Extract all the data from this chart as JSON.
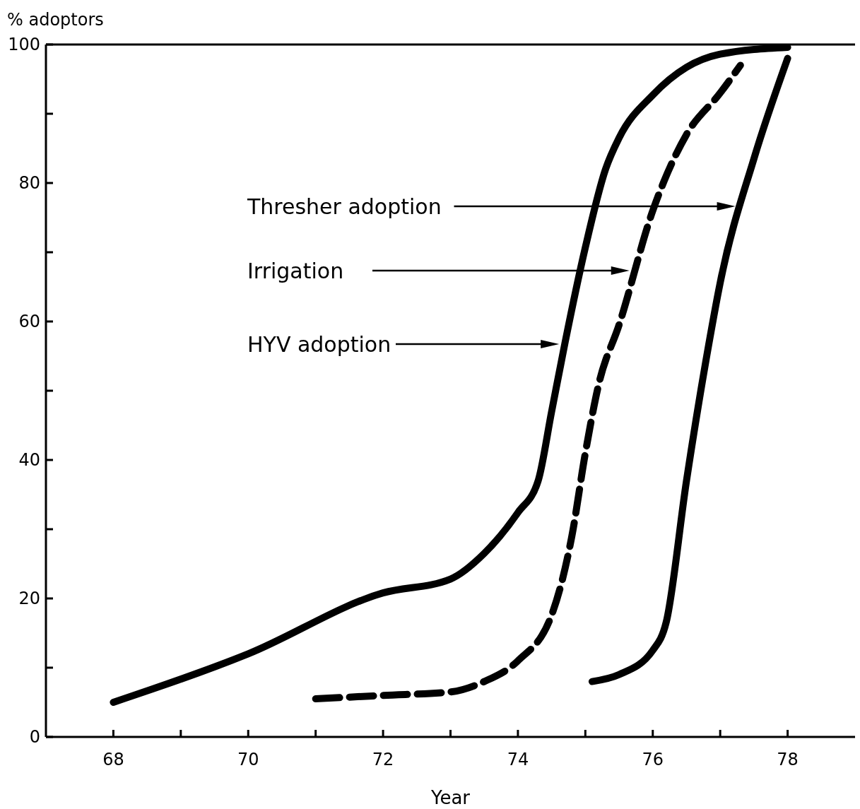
{
  "chart_data": {
    "type": "line",
    "xlabel": "Year",
    "ylabel": "% adoptors",
    "xlim": [
      67,
      79
    ],
    "ylim": [
      0,
      100
    ],
    "xticks": [
      68,
      {
        "value": 69,
        "label": null
      },
      70,
      {
        "value": 71,
        "label": null
      },
      72,
      {
        "value": 73,
        "label": null
      },
      74,
      {
        "value": 75,
        "label": null
      },
      76,
      {
        "value": 77,
        "label": null
      },
      78
    ],
    "yticks": [
      0,
      {
        "value": 10,
        "label": null
      },
      20,
      {
        "value": 30,
        "label": null
      },
      40,
      {
        "value": 50,
        "label": null
      },
      60,
      {
        "value": 70,
        "label": null
      },
      80,
      {
        "value": 90,
        "label": null
      },
      100
    ],
    "grid": false,
    "marker": "none",
    "series": [
      {
        "color": "#000000",
        "line_style": "solid",
        "x": [
          68,
          70,
          72,
          73,
          73.5,
          74,
          74.3,
          74.5,
          74.7,
          75,
          75.3,
          75.5,
          76,
          76.5,
          77,
          78
        ],
        "values": [
          5,
          12,
          20.8,
          22.8,
          26.5,
          32.4,
          37,
          47,
          57,
          70.7,
          82,
          86.5,
          92.7,
          96.7,
          98.6,
          99.6
        ]
      },
      {
        "color": "#000000",
        "line_style": "dashed",
        "x": [
          71,
          72,
          73,
          73.5,
          74,
          74.5,
          74.8,
          75,
          75.2,
          75.5,
          76,
          76.5,
          77,
          77.3
        ],
        "values": [
          5.5,
          6,
          6.5,
          8,
          11,
          17.6,
          29,
          41,
          51,
          59.5,
          76,
          87,
          93,
          97
        ]
      },
      {
        "color": "#000000",
        "line_style": "solid",
        "x": [
          75.1,
          75.5,
          76,
          76.2,
          76.5,
          76.8,
          77,
          77.5,
          78
        ],
        "values": [
          8,
          9,
          12.5,
          16.6,
          37,
          55,
          65.6,
          83.5,
          98
        ]
      }
    ],
    "annotations": [
      "Thresher adoption",
      "Irrigation",
      "HYV adoption"
    ]
  }
}
